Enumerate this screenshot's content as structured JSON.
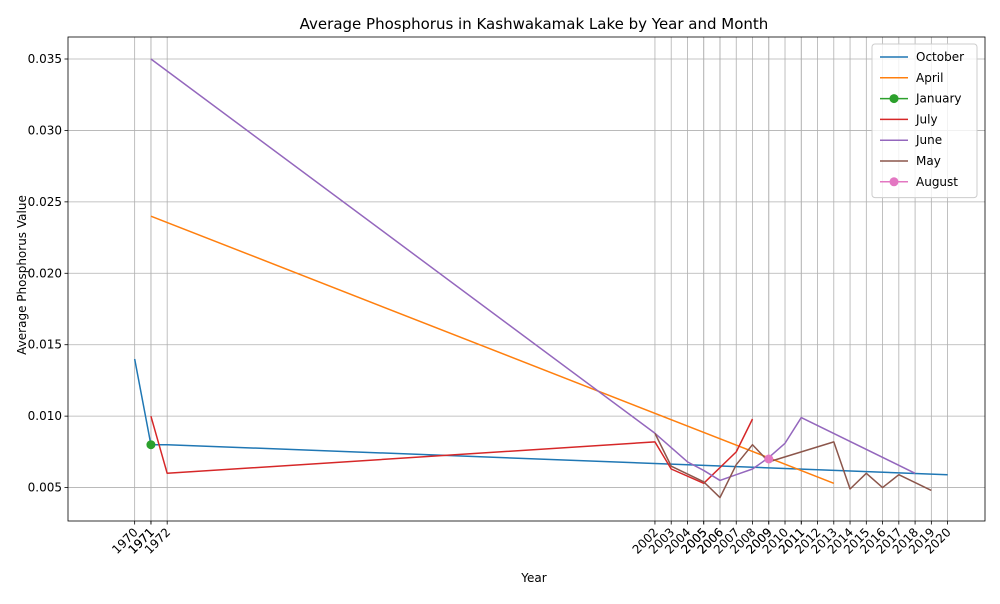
{
  "chart_data": {
    "type": "line",
    "title": "Average Phosphorus in Kashwakamak Lake by Year and Month",
    "xlabel": "Year",
    "ylabel": "Average Phosphorus Value",
    "xlim": [
      1965.9,
      2022.3
    ],
    "ylim": [
      0.00266,
      0.03654
    ],
    "x_ticks": [
      "1970",
      "1971",
      "1971",
      "1972",
      "2002",
      "2003",
      "2004",
      "2005",
      "2005",
      "2006",
      "2006",
      "2007",
      "2008",
      "2009",
      "2009",
      "2010",
      "2011",
      "2011",
      "2012",
      "2013",
      "2014",
      "2015",
      "2016",
      "2017",
      "2018",
      "2019",
      "2020"
    ],
    "x_tick_positions": [
      1970,
      1971,
      1971,
      1972,
      2002,
      2003,
      2004,
      2005,
      2005,
      2006,
      2006,
      2007,
      2008,
      2009,
      2009,
      2010,
      2011,
      2011,
      2012,
      2013,
      2014,
      2015,
      2016,
      2017,
      2018,
      2019,
      2020
    ],
    "y_ticks": [
      "0.005",
      "0.010",
      "0.015",
      "0.020",
      "0.025",
      "0.030",
      "0.035"
    ],
    "y_tick_values": [
      0.005,
      0.01,
      0.015,
      0.02,
      0.025,
      0.03,
      0.035
    ],
    "grid": true,
    "legend_position": "top-right",
    "series": [
      {
        "name": "October",
        "color": "#1f77b4",
        "marker": false,
        "x": [
          1970,
          1971,
          1972,
          2020
        ],
        "y": [
          0.014,
          0.008,
          0.008,
          0.0059
        ]
      },
      {
        "name": "April",
        "color": "#ff7f0e",
        "marker": false,
        "x": [
          1971,
          2013
        ],
        "y": [
          0.024,
          0.0053
        ]
      },
      {
        "name": "January",
        "color": "#2ca02c",
        "marker": true,
        "x": [
          1971
        ],
        "y": [
          0.008
        ]
      },
      {
        "name": "July",
        "color": "#d62728",
        "marker": false,
        "x": [
          1971,
          1972,
          2002,
          2003,
          2005,
          2007,
          2008
        ],
        "y": [
          0.01,
          0.006,
          0.0082,
          0.0063,
          0.0053,
          0.0075,
          0.0098
        ]
      },
      {
        "name": "June",
        "color": "#9467bd",
        "marker": false,
        "x": [
          1971,
          2002,
          2003,
          2004,
          2005,
          2006,
          2007,
          2008,
          2009,
          2010,
          2011,
          2018
        ],
        "y": [
          0.035,
          0.0088,
          0.0078,
          0.0068,
          0.0062,
          0.0055,
          0.0059,
          0.0063,
          0.0071,
          0.0081,
          0.0099,
          0.006
        ]
      },
      {
        "name": "May",
        "color": "#8c564b",
        "marker": false,
        "x": [
          2002,
          2003,
          2005,
          2006,
          2007,
          2008,
          2009,
          2013,
          2014,
          2015,
          2016,
          2017,
          2019
        ],
        "y": [
          0.0088,
          0.0065,
          0.0054,
          0.0043,
          0.0066,
          0.008,
          0.0068,
          0.0082,
          0.0049,
          0.006,
          0.005,
          0.0059,
          0.0048
        ]
      },
      {
        "name": "August",
        "color": "#e377c2",
        "marker": true,
        "x": [
          2009
        ],
        "y": [
          0.007
        ]
      }
    ]
  }
}
